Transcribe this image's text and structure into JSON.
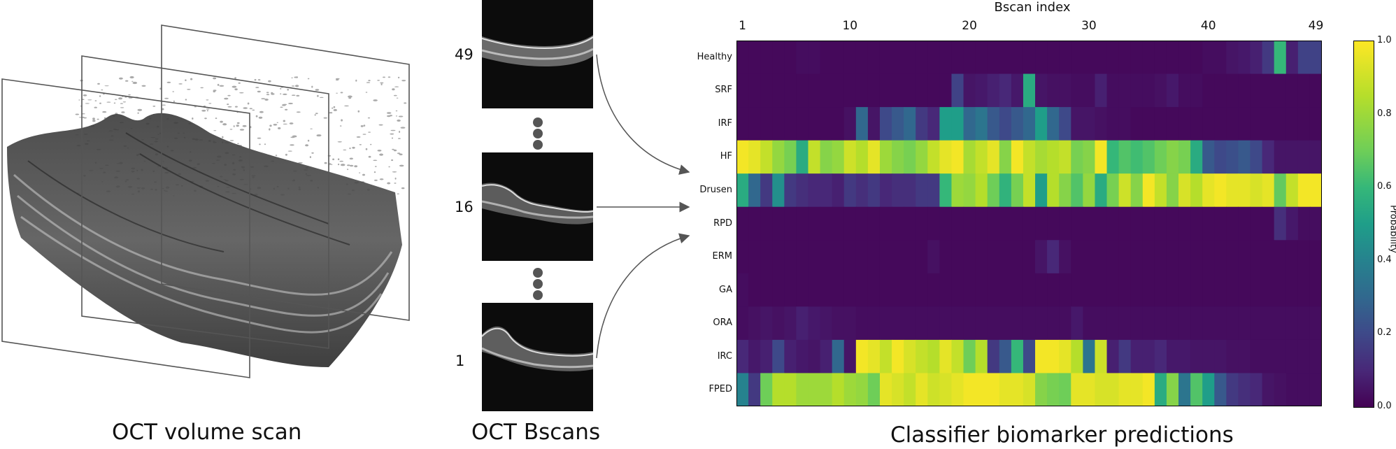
{
  "captions": {
    "volume": "OCT volume scan",
    "bscans": "OCT Bscans",
    "predictions": "Classifier biomarker predictions"
  },
  "bscans": {
    "labels": [
      "49",
      "16",
      "1"
    ]
  },
  "chart_data": {
    "type": "heatmap",
    "xlabel": "Bscan index",
    "x_ticks": [
      "1",
      "10",
      "20",
      "30",
      "40",
      "49"
    ],
    "x": [
      1,
      2,
      3,
      4,
      5,
      6,
      7,
      8,
      9,
      10,
      11,
      12,
      13,
      14,
      15,
      16,
      17,
      18,
      19,
      20,
      21,
      22,
      23,
      24,
      25,
      26,
      27,
      28,
      29,
      30,
      31,
      32,
      33,
      34,
      35,
      36,
      37,
      38,
      39,
      40,
      41,
      42,
      43,
      44,
      45,
      46,
      47,
      48,
      49
    ],
    "categories": [
      "Healthy",
      "SRF",
      "IRF",
      "HF",
      "Drusen",
      "RPD",
      "ERM",
      "GA",
      "ORA",
      "IRC",
      "FPED"
    ],
    "colorbar": {
      "label": "Probability",
      "range": [
        0,
        1
      ],
      "ticks": [
        "0.0",
        "0.2",
        "0.4",
        "0.6",
        "0.8",
        "1.0"
      ],
      "colormap": "viridis"
    },
    "values": [
      [
        0.02,
        0.02,
        0.02,
        0.02,
        0.02,
        0.03,
        0.03,
        0.02,
        0.02,
        0.02,
        0.02,
        0.02,
        0.02,
        0.02,
        0.02,
        0.02,
        0.02,
        0.02,
        0.02,
        0.02,
        0.02,
        0.02,
        0.02,
        0.02,
        0.02,
        0.02,
        0.02,
        0.02,
        0.02,
        0.02,
        0.02,
        0.02,
        0.02,
        0.02,
        0.02,
        0.02,
        0.02,
        0.02,
        0.02,
        0.03,
        0.03,
        0.05,
        0.06,
        0.08,
        0.15,
        0.6,
        0.08,
        0.18,
        0.18
      ],
      [
        0.02,
        0.02,
        0.02,
        0.02,
        0.02,
        0.02,
        0.02,
        0.02,
        0.02,
        0.02,
        0.02,
        0.02,
        0.02,
        0.02,
        0.02,
        0.02,
        0.02,
        0.02,
        0.18,
        0.05,
        0.06,
        0.08,
        0.1,
        0.06,
        0.55,
        0.05,
        0.04,
        0.04,
        0.03,
        0.03,
        0.08,
        0.03,
        0.03,
        0.03,
        0.03,
        0.04,
        0.06,
        0.03,
        0.03,
        0.02,
        0.02,
        0.02,
        0.02,
        0.02,
        0.02,
        0.02,
        0.02,
        0.02,
        0.02
      ],
      [
        0.02,
        0.02,
        0.02,
        0.02,
        0.02,
        0.02,
        0.02,
        0.02,
        0.02,
        0.04,
        0.3,
        0.05,
        0.2,
        0.25,
        0.3,
        0.15,
        0.1,
        0.5,
        0.5,
        0.3,
        0.35,
        0.25,
        0.2,
        0.25,
        0.3,
        0.5,
        0.3,
        0.2,
        0.05,
        0.05,
        0.04,
        0.03,
        0.03,
        0.02,
        0.02,
        0.02,
        0.02,
        0.02,
        0.02,
        0.02,
        0.02,
        0.02,
        0.02,
        0.02,
        0.02,
        0.02,
        0.02,
        0.02,
        0.02
      ],
      [
        0.98,
        0.95,
        0.88,
        0.78,
        0.72,
        0.55,
        0.88,
        0.75,
        0.78,
        0.9,
        0.85,
        0.95,
        0.8,
        0.75,
        0.72,
        0.78,
        0.88,
        0.95,
        0.98,
        0.82,
        0.88,
        0.95,
        0.75,
        0.98,
        0.88,
        0.82,
        0.85,
        0.88,
        0.72,
        0.75,
        0.98,
        0.6,
        0.65,
        0.62,
        0.65,
        0.7,
        0.75,
        0.72,
        0.55,
        0.25,
        0.2,
        0.22,
        0.25,
        0.2,
        0.1,
        0.05,
        0.05,
        0.05,
        0.05
      ],
      [
        0.55,
        0.3,
        0.15,
        0.45,
        0.15,
        0.12,
        0.1,
        0.1,
        0.08,
        0.15,
        0.12,
        0.15,
        0.1,
        0.12,
        0.12,
        0.15,
        0.15,
        0.6,
        0.8,
        0.78,
        0.85,
        0.7,
        0.58,
        0.72,
        0.88,
        0.5,
        0.85,
        0.75,
        0.65,
        0.78,
        0.55,
        0.72,
        0.9,
        0.75,
        0.98,
        0.88,
        0.75,
        0.92,
        0.85,
        0.95,
        0.98,
        0.95,
        0.95,
        0.92,
        0.95,
        0.68,
        0.88,
        0.98,
        0.98
      ],
      [
        0.02,
        0.02,
        0.02,
        0.02,
        0.02,
        0.02,
        0.02,
        0.02,
        0.02,
        0.02,
        0.02,
        0.02,
        0.02,
        0.02,
        0.02,
        0.02,
        0.02,
        0.02,
        0.02,
        0.02,
        0.02,
        0.02,
        0.02,
        0.02,
        0.02,
        0.02,
        0.02,
        0.02,
        0.02,
        0.02,
        0.02,
        0.02,
        0.02,
        0.02,
        0.02,
        0.02,
        0.02,
        0.02,
        0.02,
        0.02,
        0.02,
        0.02,
        0.02,
        0.02,
        0.02,
        0.12,
        0.06,
        0.03,
        0.03
      ],
      [
        0.02,
        0.02,
        0.02,
        0.02,
        0.02,
        0.02,
        0.02,
        0.02,
        0.02,
        0.02,
        0.02,
        0.02,
        0.02,
        0.02,
        0.02,
        0.02,
        0.04,
        0.02,
        0.02,
        0.02,
        0.02,
        0.02,
        0.02,
        0.02,
        0.02,
        0.05,
        0.1,
        0.04,
        0.02,
        0.02,
        0.02,
        0.02,
        0.02,
        0.02,
        0.02,
        0.02,
        0.02,
        0.02,
        0.02,
        0.02,
        0.02,
        0.02,
        0.02,
        0.02,
        0.02,
        0.02,
        0.02,
        0.02,
        0.02
      ],
      [
        0.03,
        0.02,
        0.02,
        0.02,
        0.02,
        0.02,
        0.02,
        0.02,
        0.02,
        0.02,
        0.02,
        0.02,
        0.02,
        0.02,
        0.02,
        0.02,
        0.02,
        0.02,
        0.02,
        0.02,
        0.02,
        0.02,
        0.02,
        0.02,
        0.02,
        0.02,
        0.02,
        0.02,
        0.02,
        0.02,
        0.02,
        0.02,
        0.02,
        0.02,
        0.02,
        0.02,
        0.02,
        0.02,
        0.02,
        0.02,
        0.02,
        0.02,
        0.02,
        0.02,
        0.02,
        0.02,
        0.02,
        0.02,
        0.02
      ],
      [
        0.03,
        0.04,
        0.05,
        0.04,
        0.05,
        0.08,
        0.06,
        0.05,
        0.04,
        0.04,
        0.03,
        0.03,
        0.03,
        0.03,
        0.03,
        0.03,
        0.03,
        0.03,
        0.03,
        0.03,
        0.03,
        0.03,
        0.03,
        0.03,
        0.03,
        0.03,
        0.03,
        0.03,
        0.06,
        0.03,
        0.03,
        0.03,
        0.03,
        0.03,
        0.03,
        0.03,
        0.03,
        0.03,
        0.03,
        0.03,
        0.03,
        0.03,
        0.03,
        0.03,
        0.03,
        0.03,
        0.03,
        0.03,
        0.03
      ],
      [
        0.1,
        0.06,
        0.08,
        0.2,
        0.08,
        0.06,
        0.05,
        0.08,
        0.3,
        0.05,
        0.98,
        0.95,
        0.88,
        0.98,
        0.92,
        0.88,
        0.85,
        0.95,
        0.88,
        0.7,
        0.85,
        0.15,
        0.25,
        0.6,
        0.2,
        0.98,
        0.98,
        0.95,
        0.85,
        0.35,
        0.9,
        0.08,
        0.15,
        0.08,
        0.08,
        0.1,
        0.06,
        0.06,
        0.05,
        0.05,
        0.05,
        0.04,
        0.04,
        0.03,
        0.03,
        0.03,
        0.03,
        0.03,
        0.03
      ],
      [
        0.4,
        0.15,
        0.7,
        0.85,
        0.85,
        0.8,
        0.8,
        0.8,
        0.85,
        0.8,
        0.78,
        0.7,
        0.95,
        0.92,
        0.88,
        0.95,
        0.9,
        0.92,
        0.95,
        0.98,
        0.98,
        0.98,
        0.95,
        0.95,
        0.92,
        0.75,
        0.72,
        0.7,
        0.95,
        0.95,
        0.92,
        0.92,
        0.95,
        0.95,
        0.98,
        0.55,
        0.75,
        0.35,
        0.65,
        0.5,
        0.25,
        0.15,
        0.12,
        0.1,
        0.05,
        0.04,
        0.03,
        0.03,
        0.03
      ]
    ]
  }
}
